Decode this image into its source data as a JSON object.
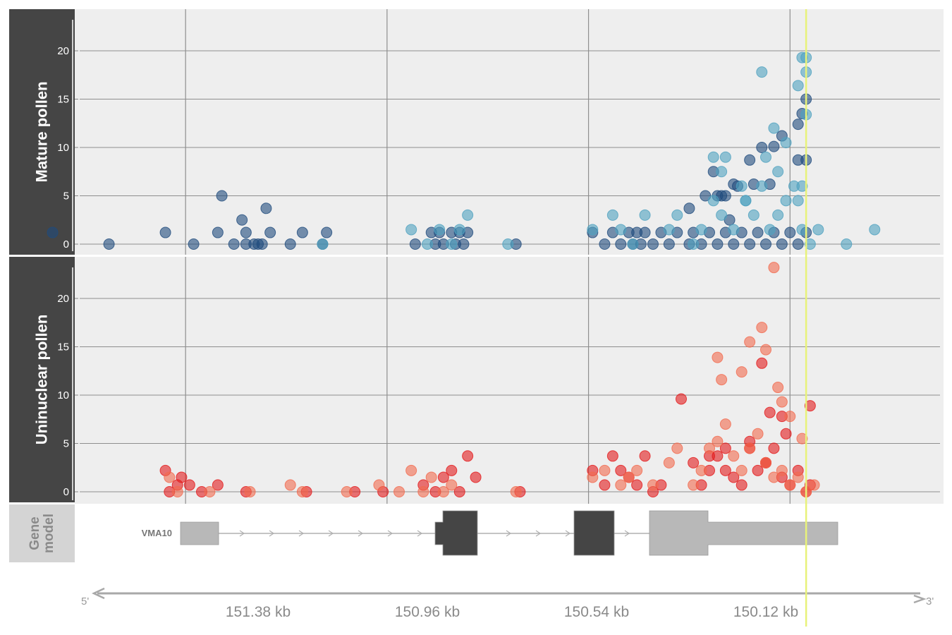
{
  "panels": {
    "mature": {
      "label": "Mature pollen"
    },
    "uninuclear": {
      "label": "Uninuclear pollen"
    },
    "gene_model": {
      "label": "Gene model"
    }
  },
  "gene": {
    "name": "VMA10"
  },
  "axis": {
    "five_prime": "5'",
    "three_prime": "3'",
    "ticks": [
      "151.38 kb",
      "150.96 kb",
      "150.54 kb",
      "150.12 kb"
    ]
  },
  "colors": {
    "panel_bg": "#eeeeee",
    "strip_bg": "#454545",
    "mature_dark": "#1f4b7d",
    "mature_light": "#4fa1bf",
    "uninuclear_dark": "#e31a1c",
    "uninuclear_light": "#f26a4f",
    "highlight": "#e8f27a",
    "exon_coding": "#454545",
    "exon_utr": "#b8b8b8"
  },
  "chart_data": [
    {
      "type": "scatter",
      "panel": "Mature pollen",
      "x_unit": "kb (decreasing left to right)",
      "ylim": [
        0,
        24
      ],
      "yticks": [
        0,
        5,
        10,
        15,
        20
      ],
      "x_major_grid_kb": [
        151.56,
        151.06,
        150.56,
        150.06
      ],
      "highlight_x_kb": 150.02,
      "series": [
        {
          "values_x_kb": [
            151.89,
            151.75,
            151.61,
            151.54,
            151.48,
            151.44,
            151.41,
            151.38,
            151.47,
            151.42,
            151.36,
            151.41,
            151.39,
            151.37,
            151.35,
            151.3,
            151.27,
            151.22,
            151.21,
            150.99,
            150.95,
            150.94,
            150.93,
            150.92,
            150.9,
            150.89,
            150.88,
            150.87,
            150.86,
            150.74,
            150.55,
            150.52,
            150.5,
            150.48,
            150.46,
            150.45,
            150.44,
            150.43,
            150.42,
            150.4,
            150.38,
            150.36,
            150.34,
            150.31,
            150.3,
            150.28,
            150.26,
            150.24,
            150.22,
            150.2,
            150.18,
            150.16,
            150.14,
            150.12,
            150.1,
            150.08,
            150.06,
            150.04,
            150.02,
            150.24,
            150.23,
            150.22,
            150.27,
            150.19,
            150.16,
            150.1,
            150.08,
            150.04,
            150.03,
            150.02,
            150.02,
            150.04,
            150.11,
            150.13,
            150.15,
            150.2,
            150.31,
            150.25,
            150.21
          ],
          "values_y": [
            1.2,
            0,
            1.2,
            0,
            1.2,
            0,
            0,
            0,
            5,
            2.5,
            3.7,
            1.2,
            0,
            0,
            1.2,
            0,
            1.2,
            0,
            1.2,
            0,
            1.2,
            0,
            1.2,
            0,
            1.2,
            0,
            1.2,
            0,
            1.2,
            0,
            1.2,
            0,
            1.2,
            0,
            1.2,
            0,
            1.2,
            0,
            1.2,
            0,
            1.2,
            0,
            1.2,
            0,
            1.2,
            0,
            1.2,
            0,
            1.2,
            0,
            1.2,
            0,
            1.2,
            0,
            1.2,
            0,
            1.2,
            0,
            1.2,
            5,
            5,
            5,
            5,
            6,
            8.7,
            10.1,
            11.2,
            12.4,
            13.5,
            8.7,
            15,
            8.7,
            6.2,
            10,
            6.2,
            6.2,
            3.7,
            7.5,
            2.5
          ],
          "name": ""
        },
        {
          "values_x_kb": [
            151.22,
            151.0,
            150.96,
            150.93,
            150.9,
            150.88,
            150.86,
            150.76,
            150.55,
            150.5,
            150.48,
            150.45,
            150.42,
            150.36,
            150.34,
            150.3,
            150.28,
            150.25,
            150.23,
            150.2,
            150.17,
            150.15,
            150.13,
            150.11,
            150.09,
            150.07,
            150.05,
            150.03,
            150.01,
            149.99,
            149.92,
            149.85,
            150.13,
            150.12,
            150.1,
            150.02,
            150.04,
            150.03,
            150.02,
            150.02,
            150.07,
            150.22,
            150.23,
            150.25,
            150.09,
            150.03,
            150.04,
            150.18,
            150.17
          ],
          "values_y": [
            0,
            1.5,
            0,
            1.5,
            0,
            1.5,
            3,
            0,
            1.5,
            3,
            1.5,
            0,
            3,
            1.5,
            3,
            0,
            1.5,
            4.5,
            3,
            1.5,
            4.5,
            3,
            6,
            1.5,
            3,
            4.5,
            6,
            1.5,
            0,
            1.5,
            0,
            1.5,
            17.8,
            9,
            12,
            19.3,
            16.4,
            19.3,
            17.8,
            13.4,
            10.5,
            9,
            7.5,
            9,
            7.5,
            6,
            4.5,
            6,
            4.5
          ],
          "name": ""
        }
      ]
    },
    {
      "type": "scatter",
      "panel": "Uninuclear pollen",
      "x_unit": "kb (decreasing left to right)",
      "ylim": [
        0,
        24
      ],
      "yticks": [
        0,
        5,
        10,
        15,
        20
      ],
      "x_major_grid_kb": [
        151.56,
        151.06,
        150.56,
        150.06
      ],
      "highlight_x_kb": 150.02,
      "series": [
        {
          "values_x_kb": [
            151.61,
            151.6,
            151.58,
            151.57,
            151.55,
            151.52,
            151.48,
            151.41,
            151.26,
            151.14,
            151.07,
            150.97,
            150.94,
            150.92,
            150.9,
            150.88,
            150.86,
            150.84,
            150.73,
            150.55,
            150.52,
            150.5,
            150.48,
            150.46,
            150.44,
            150.42,
            150.4,
            150.38,
            150.33,
            150.3,
            150.28,
            150.26,
            150.24,
            150.22,
            150.2,
            150.18,
            150.16,
            150.14,
            150.12,
            150.1,
            150.08,
            150.06,
            150.04,
            150.02,
            150.01,
            150.13,
            150.11,
            150.08,
            150.07,
            150.01,
            150.26,
            150.22,
            150.16,
            150.12
          ],
          "values_y": [
            2.2,
            0,
            0.7,
            1.5,
            0.7,
            0,
            0.7,
            0,
            0,
            0,
            0,
            0.7,
            0,
            1.5,
            2.2,
            0,
            3.7,
            1.5,
            0,
            2.2,
            0.7,
            3.7,
            2.2,
            1.5,
            0.7,
            3.7,
            0,
            0.7,
            9.6,
            3,
            0.7,
            2.2,
            3.7,
            4.5,
            1.5,
            0.7,
            5.2,
            2.2,
            3,
            4.5,
            1.5,
            0.7,
            2.2,
            0,
            0.7,
            13.3,
            8.2,
            7.8,
            6,
            8.9,
            3.7,
            2.2,
            4.5,
            3
          ],
          "name": ""
        },
        {
          "values_x_kb": [
            151.6,
            151.58,
            151.5,
            151.4,
            151.3,
            151.27,
            151.16,
            151.08,
            151.03,
            151.0,
            150.97,
            150.95,
            150.92,
            150.9,
            150.74,
            150.55,
            150.52,
            150.48,
            150.46,
            150.44,
            150.4,
            150.36,
            150.34,
            150.3,
            150.28,
            150.26,
            150.24,
            150.22,
            150.2,
            150.18,
            150.16,
            150.14,
            150.12,
            150.1,
            150.08,
            150.06,
            150.04,
            150.02,
            150.0,
            150.24,
            150.23,
            150.18,
            150.16,
            150.13,
            150.12,
            150.1,
            150.09,
            150.08,
            150.06,
            150.03
          ],
          "values_y": [
            1.5,
            0,
            0,
            0,
            0.7,
            0,
            0,
            0.7,
            0,
            2.2,
            0,
            1.5,
            0,
            0.7,
            0,
            1.5,
            2.2,
            0.7,
            1.5,
            2.2,
            0.7,
            3,
            4.5,
            0.7,
            2.2,
            4.5,
            5.2,
            7,
            3.7,
            2.2,
            4.5,
            6,
            3,
            1.5,
            2.2,
            0.7,
            1.5,
            0,
            0.7,
            13.9,
            11.6,
            12.4,
            15.5,
            17,
            14.7,
            23.2,
            10.8,
            9.3,
            7.8,
            5.5
          ],
          "name": ""
        }
      ]
    }
  ]
}
